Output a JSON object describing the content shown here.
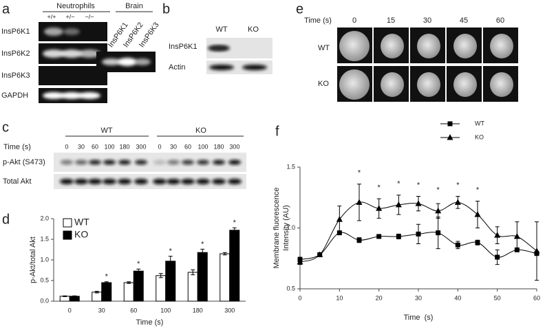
{
  "figure": {
    "panel_letters": [
      "a",
      "b",
      "c",
      "d",
      "e",
      "f"
    ],
    "a": {
      "title": "Neutrophils",
      "genotypes": [
        "+/+",
        "+/−",
        "−/−"
      ],
      "rows": [
        "InsP6K1",
        "InsP6K2",
        "InsP6K3",
        "GAPDH"
      ],
      "brain_title": "Brain",
      "brain_lanes": [
        "InsP6K1",
        "InsP6K2",
        "InsP6K3"
      ]
    },
    "b": {
      "columns": [
        "WT",
        "KO"
      ],
      "rows": [
        "InsP6K1",
        "Actin"
      ]
    },
    "c": {
      "groups": [
        "WT",
        "KO"
      ],
      "time_label": "Time (s)",
      "times": [
        "0",
        "30",
        "60",
        "100",
        "180",
        "300",
        "0",
        "30",
        "60",
        "100",
        "180",
        "300"
      ],
      "rows": [
        "p-Akt (S473)",
        "Total Akt"
      ]
    },
    "e": {
      "time_label": "Time (s)",
      "times": [
        "0",
        "15",
        "30",
        "45",
        "60"
      ],
      "rows": [
        "WT",
        "KO"
      ]
    }
  },
  "chart_data": [
    {
      "type": "bar",
      "categories": [
        "0",
        "30",
        "60",
        "100",
        "180",
        "300"
      ],
      "xlabel": "Time (s)",
      "ylabel": "p-Akt/total Akt",
      "ylim": [
        0,
        2
      ],
      "yticks": [
        {
          "value": 0,
          "label": "0.0"
        },
        0.5,
        {
          "value": 1,
          "label": "1.0"
        },
        1.5,
        {
          "value": 2,
          "label": "2.0"
        }
      ],
      "series": [
        {
          "name": "WT",
          "color": "#ffffff",
          "values": [
            0.12,
            0.22,
            0.45,
            0.62,
            0.7,
            1.15
          ],
          "errors": [
            0.01,
            0.02,
            0.02,
            0.05,
            0.06,
            0.03
          ]
        },
        {
          "name": "KO",
          "color": "#000000",
          "values": [
            0.12,
            0.45,
            0.73,
            0.97,
            1.18,
            1.72
          ],
          "errors": [
            0.01,
            0.02,
            0.05,
            0.12,
            0.08,
            0.06
          ]
        }
      ],
      "significance": [
        null,
        "*",
        "*",
        "*",
        "*",
        "*"
      ],
      "legend": "upper left"
    },
    {
      "type": "line",
      "x": [
        0,
        5,
        10,
        15,
        20,
        25,
        30,
        35,
        40,
        45,
        50,
        55,
        60
      ],
      "xlim": [
        0,
        60
      ],
      "xticks": [
        0,
        10,
        20,
        30,
        40,
        50,
        60
      ],
      "ylim": [
        0.5,
        1.5
      ],
      "yticks": [
        0.5,
        {
          "value": 1,
          "label": "1.0"
        },
        1.5
      ],
      "xlabel": "Time  (s)",
      "ylabel": [
        "Membrane fluorescence",
        "Intensity (AU)"
      ],
      "series": [
        {
          "name": "WT",
          "color": "#000000",
          "marker": "square",
          "values": [
            0.74,
            0.78,
            0.96,
            0.9,
            0.93,
            0.93,
            0.95,
            0.96,
            0.86,
            0.88,
            0.76,
            0.82,
            0.79
          ],
          "errors": [
            0.02,
            0.01,
            0.01,
            0.02,
            0.01,
            0.02,
            0.08,
            0.13,
            0.03,
            0.02,
            0.06,
            0.01,
            0.01
          ]
        },
        {
          "name": "KO",
          "color": "#000000",
          "marker": "triangle",
          "values": [
            0.72,
            0.78,
            1.07,
            1.21,
            1.16,
            1.19,
            1.2,
            1.14,
            1.21,
            1.11,
            0.94,
            0.93,
            0.81
          ],
          "errors": [
            0.02,
            0.01,
            0.11,
            0.15,
            0.08,
            0.08,
            0.06,
            0.06,
            0.05,
            0.11,
            0.07,
            0.12,
            0.24
          ]
        }
      ],
      "significance": [
        null,
        null,
        null,
        "*",
        "*",
        "*",
        "*",
        "*",
        "*",
        "*",
        null,
        null,
        null
      ],
      "legend": "upper center"
    }
  ]
}
